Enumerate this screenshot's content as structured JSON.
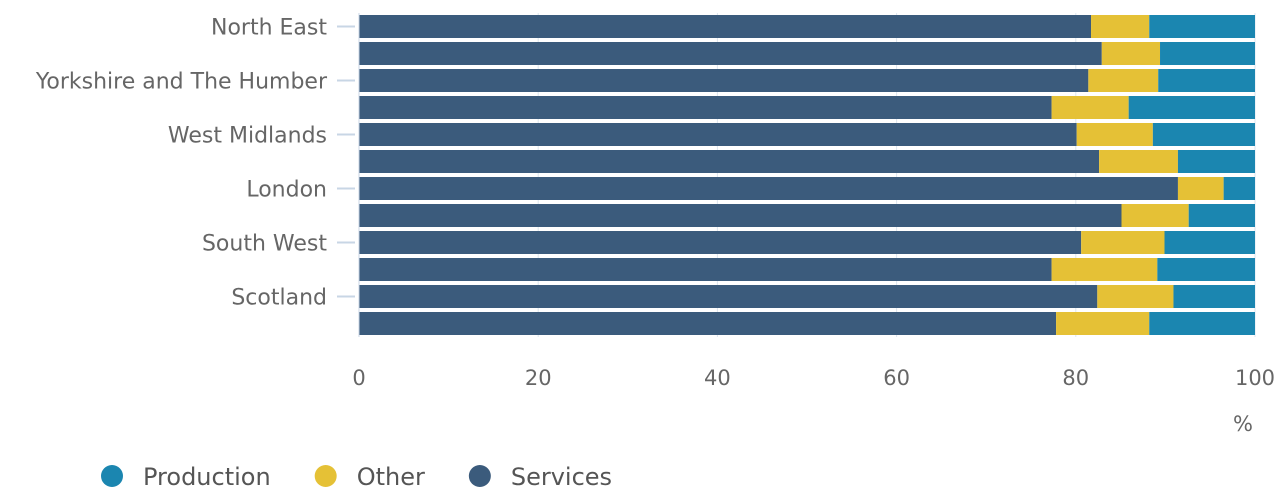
{
  "chart_data": {
    "type": "bar",
    "orientation": "horizontal",
    "stacked": true,
    "categories": [
      "North East",
      "",
      "Yorkshire and The Humber",
      "",
      "West Midlands",
      "",
      "London",
      "",
      "South West",
      "",
      "Scotland",
      ""
    ],
    "series": [
      {
        "name": "Services",
        "color": "#3b5b7c",
        "values": [
          81.7,
          82.9,
          81.4,
          77.3,
          80.1,
          82.6,
          91.4,
          85.1,
          80.6,
          77.3,
          82.4,
          77.8
        ]
      },
      {
        "name": "Other",
        "color": "#e5c136",
        "values": [
          6.5,
          6.5,
          7.8,
          8.6,
          8.5,
          8.8,
          5.1,
          7.5,
          9.3,
          11.8,
          8.5,
          10.4
        ]
      },
      {
        "name": "Production",
        "color": "#1b86b0",
        "values": [
          11.8,
          10.6,
          10.8,
          14.1,
          11.4,
          8.6,
          3.5,
          7.4,
          10.1,
          10.9,
          9.1,
          11.8
        ]
      }
    ],
    "xlim": [
      0,
      100
    ],
    "xticks": [
      0,
      20,
      40,
      60,
      80,
      100
    ],
    "xunit": "%",
    "grid": true,
    "legend_position": "bottom-left",
    "legend_order": [
      "Production",
      "Other",
      "Services"
    ]
  }
}
